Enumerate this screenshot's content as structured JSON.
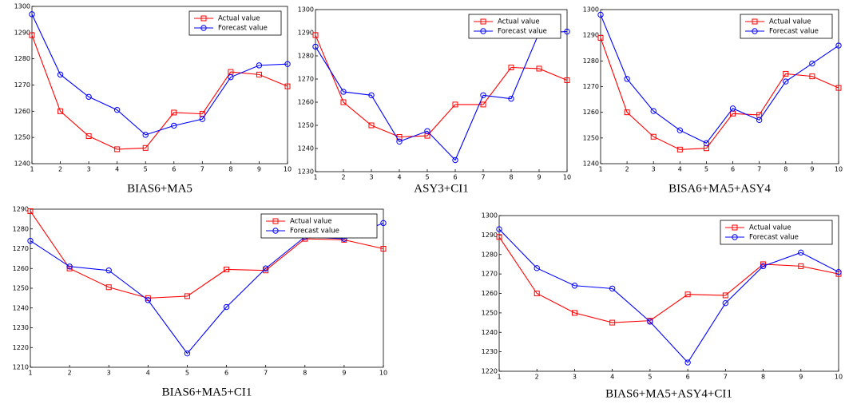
{
  "chart_data": [
    {
      "type": "line",
      "title": "BIAS6+MA5",
      "x": [
        1,
        2,
        3,
        4,
        5,
        6,
        7,
        8,
        9,
        10
      ],
      "xlim": [
        1,
        10
      ],
      "xticks": [
        1,
        2,
        3,
        4,
        5,
        6,
        7,
        8,
        9,
        10
      ],
      "ylim": [
        1240,
        1300
      ],
      "yticks": [
        1240,
        1250,
        1260,
        1270,
        1280,
        1290,
        1300
      ],
      "legend": "upper right",
      "series": [
        {
          "name": "Actual value",
          "color": "#ff0000",
          "marker": "square",
          "values": [
            1289,
            1260,
            1250.5,
            1245.5,
            1246,
            1259.5,
            1259,
            1275,
            1274,
            1269.5
          ]
        },
        {
          "name": "Forecast value",
          "color": "#0000ff",
          "marker": "circle",
          "values": [
            1297,
            1274,
            1265.5,
            1260.5,
            1251,
            1254.5,
            1257,
            1273,
            1277.5,
            1278
          ]
        }
      ]
    },
    {
      "type": "line",
      "title": "ASY3+CI1",
      "x": [
        1,
        2,
        3,
        4,
        5,
        6,
        7,
        8,
        9,
        10
      ],
      "xlim": [
        1,
        10
      ],
      "xticks": [
        1,
        2,
        3,
        4,
        5,
        6,
        7,
        8,
        9,
        10
      ],
      "ylim": [
        1230,
        1300
      ],
      "yticks": [
        1230,
        1240,
        1250,
        1260,
        1270,
        1280,
        1290,
        1300
      ],
      "legend": "upper right",
      "series": [
        {
          "name": "Actual value",
          "color": "#ff0000",
          "marker": "square",
          "values": [
            1289,
            1260,
            1250,
            1245,
            1245.5,
            1259,
            1259,
            1275,
            1274.5,
            1269.5
          ]
        },
        {
          "name": "Forecast value",
          "color": "#0000ff",
          "marker": "circle",
          "values": [
            1284,
            1264.5,
            1263,
            1243,
            1247.5,
            1235,
            1263,
            1261.5,
            1290,
            1290.5
          ]
        }
      ]
    },
    {
      "type": "line",
      "title": "BISA6+MA5+ASY4",
      "x": [
        1,
        2,
        3,
        4,
        5,
        6,
        7,
        8,
        9,
        10
      ],
      "xlim": [
        1,
        10
      ],
      "xticks": [
        1,
        2,
        3,
        4,
        5,
        6,
        7,
        8,
        9,
        10
      ],
      "ylim": [
        1240,
        1300
      ],
      "yticks": [
        1240,
        1250,
        1260,
        1270,
        1280,
        1290,
        1300
      ],
      "legend": "upper right",
      "series": [
        {
          "name": "Actual value",
          "color": "#ff0000",
          "marker": "square",
          "values": [
            1289,
            1260,
            1250.5,
            1245.5,
            1246,
            1259.5,
            1259,
            1275,
            1274,
            1269.5
          ]
        },
        {
          "name": "Forecast value",
          "color": "#0000ff",
          "marker": "circle",
          "values": [
            1298,
            1273,
            1260.5,
            1253,
            1248,
            1261.5,
            1257,
            1272,
            1279,
            1286
          ]
        }
      ]
    },
    {
      "type": "line",
      "title": "BIAS6+MA5+CI1",
      "x": [
        1,
        2,
        3,
        4,
        5,
        6,
        7,
        8,
        9,
        10
      ],
      "xlim": [
        1,
        10
      ],
      "xticks": [
        1,
        2,
        3,
        4,
        5,
        6,
        7,
        8,
        9,
        10
      ],
      "ylim": [
        1210,
        1290
      ],
      "yticks": [
        1210,
        1220,
        1230,
        1240,
        1250,
        1260,
        1270,
        1280,
        1290
      ],
      "legend": "upper right",
      "series": [
        {
          "name": "Actual value",
          "color": "#ff0000",
          "marker": "square",
          "values": [
            1289,
            1260,
            1250.5,
            1245,
            1246,
            1259.5,
            1259,
            1275,
            1274.5,
            1270
          ]
        },
        {
          "name": "Forecast value",
          "color": "#0000ff",
          "marker": "circle",
          "values": [
            1274,
            1261,
            1259,
            1244,
            1217,
            1240.5,
            1260,
            1276,
            1275,
            1283
          ]
        }
      ]
    },
    {
      "type": "line",
      "title": "BIAS6+MA5+ASY4+CI1",
      "x": [
        1,
        2,
        3,
        4,
        5,
        6,
        7,
        8,
        9,
        10
      ],
      "xlim": [
        1,
        10
      ],
      "xticks": [
        1,
        2,
        3,
        4,
        5,
        6,
        7,
        8,
        9,
        10
      ],
      "ylim": [
        1220,
        1300
      ],
      "yticks": [
        1220,
        1230,
        1240,
        1250,
        1260,
        1270,
        1280,
        1290,
        1300
      ],
      "legend": "upper right",
      "series": [
        {
          "name": "Actual value",
          "color": "#ff0000",
          "marker": "square",
          "values": [
            1289,
            1260,
            1250,
            1245,
            1246,
            1259.5,
            1259,
            1275,
            1274,
            1270
          ]
        },
        {
          "name": "Forecast value",
          "color": "#0000ff",
          "marker": "circle",
          "values": [
            1293,
            1273,
            1264,
            1262.5,
            1245.5,
            1224.5,
            1255,
            1274,
            1281,
            1271
          ]
        }
      ]
    }
  ]
}
